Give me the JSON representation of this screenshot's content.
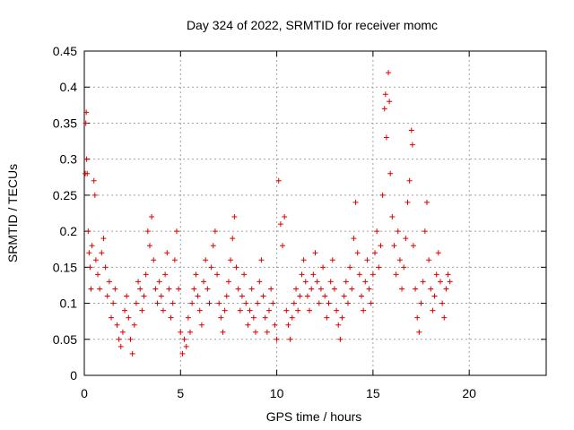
{
  "chart_data": {
    "type": "scatter",
    "title": "Day 324 of 2022, SRMTID for receiver momc",
    "xlabel": "GPS time / hours",
    "ylabel": "SRMTID / TECUs",
    "xlim": [
      0,
      24
    ],
    "ylim": [
      0,
      0.45
    ],
    "xticks": [
      0,
      5,
      10,
      15,
      20
    ],
    "xtick_labels": [
      "0",
      "5",
      "10",
      "15",
      "20"
    ],
    "yticks": [
      0,
      0.05,
      0.1,
      0.15,
      0.2,
      0.25,
      0.3,
      0.35,
      0.4,
      0.45
    ],
    "ytick_labels": [
      "0",
      "0.05",
      "0.1",
      "0.15",
      "0.2",
      "0.25",
      "0.3",
      "0.35",
      "0.4",
      "0.45"
    ],
    "grid": true,
    "marker": "+",
    "series": [
      {
        "name": "SRMTID",
        "color": "#e00000",
        "points": [
          [
            0.05,
            0.28
          ],
          [
            0.08,
            0.35
          ],
          [
            0.1,
            0.365
          ],
          [
            0.12,
            0.3
          ],
          [
            0.15,
            0.28
          ],
          [
            0.2,
            0.2
          ],
          [
            0.25,
            0.17
          ],
          [
            0.3,
            0.15
          ],
          [
            0.35,
            0.12
          ],
          [
            0.4,
            0.18
          ],
          [
            0.5,
            0.27
          ],
          [
            0.55,
            0.25
          ],
          [
            0.6,
            0.16
          ],
          [
            0.7,
            0.14
          ],
          [
            0.8,
            0.12
          ],
          [
            0.9,
            0.17
          ],
          [
            1.0,
            0.19
          ],
          [
            1.1,
            0.15
          ],
          [
            1.2,
            0.11
          ],
          [
            1.3,
            0.13
          ],
          [
            1.4,
            0.08
          ],
          [
            1.5,
            0.1
          ],
          [
            1.6,
            0.12
          ],
          [
            1.7,
            0.07
          ],
          [
            1.8,
            0.05
          ],
          [
            1.9,
            0.04
          ],
          [
            2.0,
            0.06
          ],
          [
            2.1,
            0.09
          ],
          [
            2.2,
            0.11
          ],
          [
            2.3,
            0.08
          ],
          [
            2.4,
            0.05
          ],
          [
            2.5,
            0.03
          ],
          [
            2.6,
            0.07
          ],
          [
            2.7,
            0.1
          ],
          [
            2.8,
            0.13
          ],
          [
            2.9,
            0.12
          ],
          [
            3.0,
            0.09
          ],
          [
            3.1,
            0.11
          ],
          [
            3.2,
            0.14
          ],
          [
            3.3,
            0.2
          ],
          [
            3.4,
            0.18
          ],
          [
            3.5,
            0.22
          ],
          [
            3.6,
            0.16
          ],
          [
            3.7,
            0.12
          ],
          [
            3.8,
            0.1
          ],
          [
            3.9,
            0.13
          ],
          [
            4.0,
            0.11
          ],
          [
            4.1,
            0.09
          ],
          [
            4.2,
            0.14
          ],
          [
            4.3,
            0.17
          ],
          [
            4.4,
            0.12
          ],
          [
            4.5,
            0.08
          ],
          [
            4.6,
            0.1
          ],
          [
            4.7,
            0.16
          ],
          [
            4.8,
            0.2
          ],
          [
            4.9,
            0.12
          ],
          [
            5.0,
            0.06
          ],
          [
            5.1,
            0.03
          ],
          [
            5.2,
            0.05
          ],
          [
            5.3,
            0.04
          ],
          [
            5.4,
            0.08
          ],
          [
            5.5,
            0.06
          ],
          [
            5.6,
            0.1
          ],
          [
            5.7,
            0.12
          ],
          [
            5.8,
            0.14
          ],
          [
            5.9,
            0.11
          ],
          [
            6.0,
            0.09
          ],
          [
            6.1,
            0.07
          ],
          [
            6.2,
            0.13
          ],
          [
            6.3,
            0.16
          ],
          [
            6.4,
            0.12
          ],
          [
            6.5,
            0.1
          ],
          [
            6.6,
            0.15
          ],
          [
            6.7,
            0.18
          ],
          [
            6.8,
            0.2
          ],
          [
            6.9,
            0.14
          ],
          [
            7.0,
            0.1
          ],
          [
            7.1,
            0.08
          ],
          [
            7.2,
            0.06
          ],
          [
            7.3,
            0.09
          ],
          [
            7.4,
            0.11
          ],
          [
            7.5,
            0.13
          ],
          [
            7.6,
            0.16
          ],
          [
            7.7,
            0.19
          ],
          [
            7.8,
            0.22
          ],
          [
            7.9,
            0.15
          ],
          [
            8.0,
            0.12
          ],
          [
            8.1,
            0.09
          ],
          [
            8.2,
            0.11
          ],
          [
            8.3,
            0.14
          ],
          [
            8.4,
            0.1
          ],
          [
            8.5,
            0.07
          ],
          [
            8.6,
            0.09
          ],
          [
            8.7,
            0.12
          ],
          [
            8.8,
            0.08
          ],
          [
            8.9,
            0.06
          ],
          [
            9.0,
            0.1
          ],
          [
            9.1,
            0.13
          ],
          [
            9.2,
            0.16
          ],
          [
            9.3,
            0.11
          ],
          [
            9.4,
            0.08
          ],
          [
            9.5,
            0.06
          ],
          [
            9.6,
            0.09
          ],
          [
            9.7,
            0.12
          ],
          [
            9.8,
            0.1
          ],
          [
            9.9,
            0.07
          ],
          [
            10.0,
            0.05
          ],
          [
            10.1,
            0.27
          ],
          [
            10.2,
            0.21
          ],
          [
            10.3,
            0.18
          ],
          [
            10.4,
            0.22
          ],
          [
            10.5,
            0.09
          ],
          [
            10.6,
            0.07
          ],
          [
            10.7,
            0.05
          ],
          [
            10.8,
            0.08
          ],
          [
            10.9,
            0.1
          ],
          [
            11.0,
            0.12
          ],
          [
            11.1,
            0.09
          ],
          [
            11.2,
            0.11
          ],
          [
            11.3,
            0.14
          ],
          [
            11.4,
            0.16
          ],
          [
            11.5,
            0.13
          ],
          [
            11.6,
            0.11
          ],
          [
            11.7,
            0.09
          ],
          [
            11.8,
            0.12
          ],
          [
            11.9,
            0.14
          ],
          [
            12.0,
            0.17
          ],
          [
            12.1,
            0.13
          ],
          [
            12.2,
            0.1
          ],
          [
            12.3,
            0.12
          ],
          [
            12.4,
            0.15
          ],
          [
            12.5,
            0.11
          ],
          [
            12.6,
            0.08
          ],
          [
            12.7,
            0.1
          ],
          [
            12.8,
            0.13
          ],
          [
            12.9,
            0.16
          ],
          [
            13.0,
            0.12
          ],
          [
            13.1,
            0.09
          ],
          [
            13.2,
            0.07
          ],
          [
            13.3,
            0.05
          ],
          [
            13.4,
            0.08
          ],
          [
            13.5,
            0.11
          ],
          [
            13.6,
            0.13
          ],
          [
            13.7,
            0.1
          ],
          [
            13.8,
            0.15
          ],
          [
            13.9,
            0.12
          ],
          [
            14.0,
            0.19
          ],
          [
            14.1,
            0.24
          ],
          [
            14.2,
            0.17
          ],
          [
            14.3,
            0.14
          ],
          [
            14.4,
            0.11
          ],
          [
            14.5,
            0.09
          ],
          [
            14.6,
            0.13
          ],
          [
            14.7,
            0.16
          ],
          [
            14.8,
            0.12
          ],
          [
            14.9,
            0.1
          ],
          [
            15.0,
            0.14
          ],
          [
            15.1,
            0.17
          ],
          [
            15.2,
            0.2
          ],
          [
            15.3,
            0.15
          ],
          [
            15.4,
            0.18
          ],
          [
            15.5,
            0.25
          ],
          [
            15.6,
            0.37
          ],
          [
            15.65,
            0.39
          ],
          [
            15.7,
            0.33
          ],
          [
            15.8,
            0.42
          ],
          [
            15.85,
            0.38
          ],
          [
            15.9,
            0.28
          ],
          [
            16.0,
            0.22
          ],
          [
            16.1,
            0.18
          ],
          [
            16.2,
            0.14
          ],
          [
            16.3,
            0.2
          ],
          [
            16.4,
            0.16
          ],
          [
            16.5,
            0.12
          ],
          [
            16.6,
            0.15
          ],
          [
            16.7,
            0.19
          ],
          [
            16.8,
            0.24
          ],
          [
            16.9,
            0.27
          ],
          [
            17.0,
            0.34
          ],
          [
            17.05,
            0.32
          ],
          [
            17.1,
            0.18
          ],
          [
            17.2,
            0.12
          ],
          [
            17.3,
            0.08
          ],
          [
            17.4,
            0.06
          ],
          [
            17.5,
            0.1
          ],
          [
            17.6,
            0.13
          ],
          [
            17.7,
            0.2
          ],
          [
            17.8,
            0.24
          ],
          [
            17.9,
            0.16
          ],
          [
            18.0,
            0.12
          ],
          [
            18.1,
            0.09
          ],
          [
            18.2,
            0.11
          ],
          [
            18.3,
            0.14
          ],
          [
            18.4,
            0.17
          ],
          [
            18.5,
            0.13
          ],
          [
            18.6,
            0.1
          ],
          [
            18.7,
            0.08
          ],
          [
            18.8,
            0.12
          ],
          [
            18.9,
            0.14
          ],
          [
            19.0,
            0.13
          ]
        ]
      }
    ]
  }
}
